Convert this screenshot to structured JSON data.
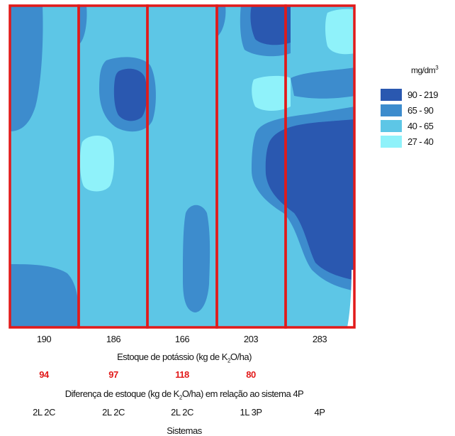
{
  "legend": {
    "title_base": "mg/dm",
    "title_sup": "3",
    "items": [
      {
        "label": "90 - 219",
        "color": "#2a58b0"
      },
      {
        "label": "65 - 90",
        "color": "#3d8ccd"
      },
      {
        "label": "40 - 65",
        "color": "#5dc6e6"
      },
      {
        "label": "27 - 40",
        "color": "#8ff2fa"
      }
    ]
  },
  "strip_color": "#e21a1a",
  "stock_values": [
    "190",
    "186",
    "166",
    "203",
    "283"
  ],
  "stock_label": {
    "pre": "Estoque de potássio (kg de K",
    "sub": "2",
    "post": "O/ha)"
  },
  "difference_values": [
    "94",
    "97",
    "118",
    "80"
  ],
  "difference_label": {
    "pre": "Diferença de estoque (kg de K",
    "sub": "2",
    "post": "O/ha) em relação ao sistema 4P"
  },
  "systems": [
    "2L 2C",
    "2L 2C",
    "2L 2C",
    "1L 3P",
    "4P"
  ],
  "systems_label": "Sistemas"
}
